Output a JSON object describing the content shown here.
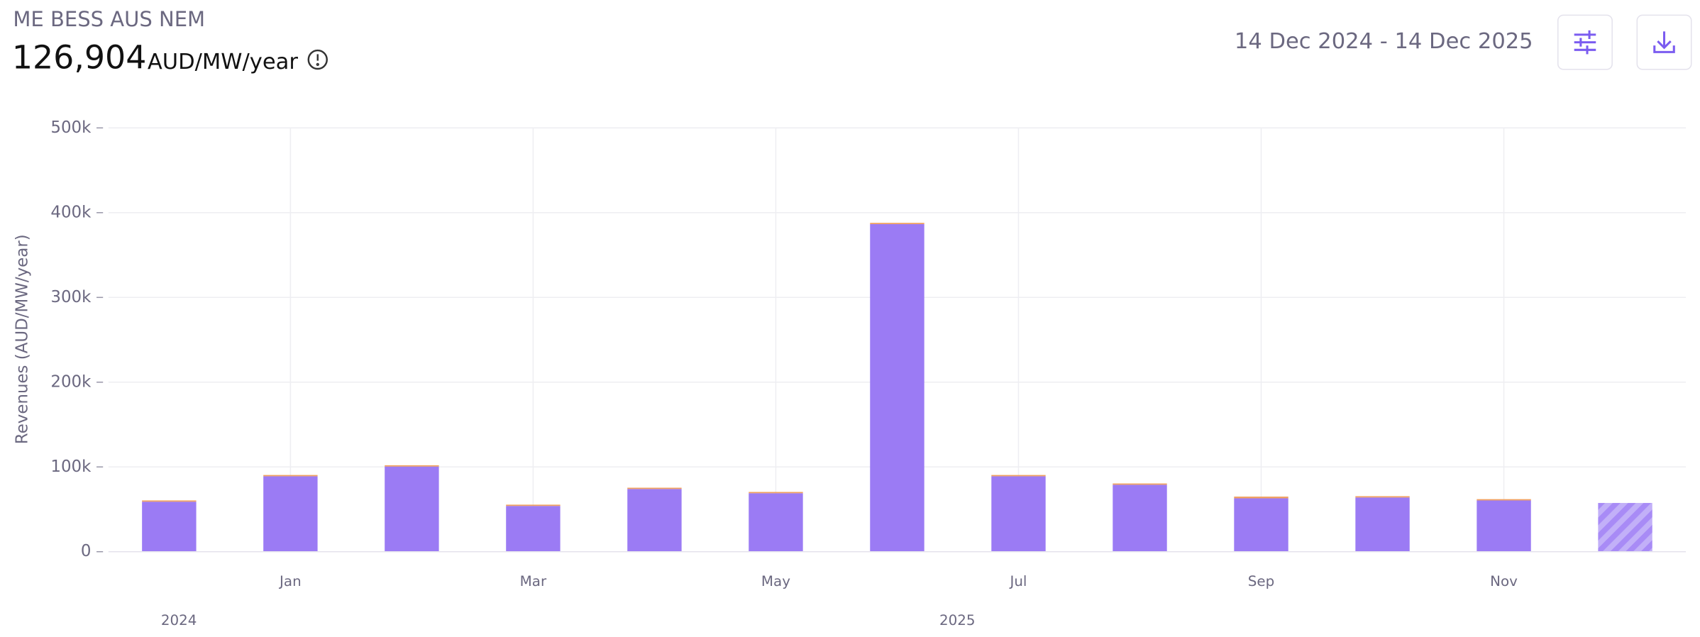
{
  "header": {
    "title": "ME BESS AUS NEM",
    "value": "126,904",
    "unit": "AUD/MW/year",
    "date_range": "14 Dec 2024 - 14 Dec 2025"
  },
  "chart_data": {
    "type": "bar",
    "stacked": true,
    "y_label": "Revenues (AUD/MW/year)",
    "categories": [
      null,
      "Jan",
      null,
      "Mar",
      null,
      "May",
      null,
      "Jul",
      null,
      "Sep",
      null,
      "Nov",
      null
    ],
    "x_group_labels": [
      "2024",
      "2025"
    ],
    "series": [
      {
        "color": "#9b7bf4",
        "values": [
          59000,
          89000,
          100500,
          54000,
          74000,
          69000,
          386500,
          89000,
          79000,
          63000,
          64000,
          60500,
          57500
        ]
      },
      {
        "color": "#f0a060",
        "values": [
          1500,
          1500,
          1500,
          1500,
          1500,
          1500,
          1500,
          1500,
          1500,
          2000,
          1500,
          1500,
          0
        ]
      }
    ],
    "hatched": [
      false,
      false,
      false,
      false,
      false,
      false,
      false,
      false,
      false,
      false,
      false,
      false,
      true
    ],
    "ylim": [
      0,
      500000
    ],
    "yticks": [
      0,
      {
        "value": 100000,
        "label": "100k"
      },
      {
        "value": 200000,
        "label": "200k"
      },
      {
        "value": 300000,
        "label": "300k"
      },
      {
        "value": 400000,
        "label": "400k"
      },
      {
        "value": 500000,
        "label": "500k"
      }
    ],
    "grid": true
  }
}
